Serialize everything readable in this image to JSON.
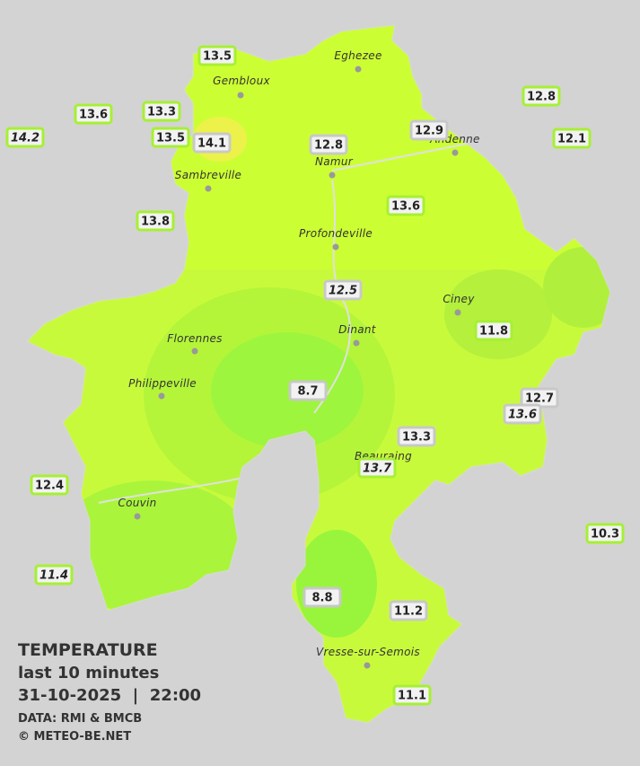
{
  "legend": {
    "title": "TEMPERATURE",
    "subtitle": "last 10 minutes",
    "datetime": "31-10-2025  |  22:00",
    "source": "DATA: RMI & BMCB",
    "credit": "© METEO-BE.NET"
  },
  "cities": [
    "Eghezee",
    "Gembloux",
    "Andenne",
    "Namur",
    "Sambreville",
    "Profondeville",
    "Ciney",
    "Florennes",
    "Dinant",
    "Philippeville",
    "Beauraing",
    "Couvin",
    "Vresse-sur-Semois"
  ],
  "stations": [
    13.5,
    13.6,
    13.3,
    13.5,
    14.1,
    14.2,
    12.8,
    12.9,
    12.8,
    12.1,
    13.8,
    13.6,
    12.5,
    11.8,
    8.7,
    12.7,
    13.6,
    13.3,
    13.7,
    12.4,
    10.3,
    11.4,
    8.8,
    11.2,
    11.1
  ]
}
